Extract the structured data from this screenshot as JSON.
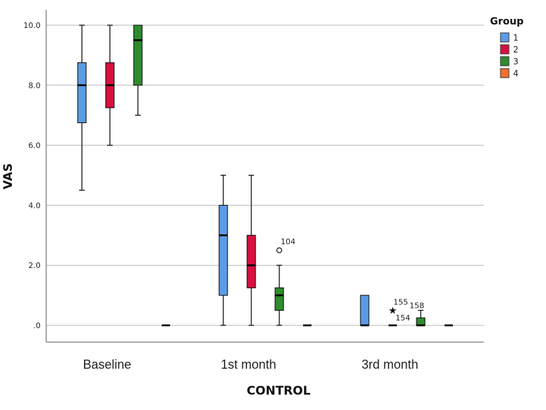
{
  "chart_data": {
    "type": "boxplot",
    "title": "",
    "xlabel": "CONTROL",
    "ylabel": "VAS",
    "ylim": [
      0,
      10
    ],
    "yticks": [
      ".0",
      "2.0",
      "4.0",
      "6.0",
      "8.0",
      "10.0"
    ],
    "ytick_values": [
      0,
      2,
      4,
      6,
      8,
      10
    ],
    "grid": true,
    "legend": {
      "title": "Group",
      "position": "right"
    },
    "categories": [
      "Baseline",
      "1st month",
      "3rd month"
    ],
    "series": [
      {
        "name": "1",
        "color": "#5b9ce6",
        "boxes": [
          {
            "min": 4.5,
            "q1": 6.75,
            "median": 8.0,
            "q3": 8.75,
            "max": 10.0
          },
          {
            "min": 0.0,
            "q1": 1.0,
            "median": 3.0,
            "q3": 4.0,
            "max": 5.0
          },
          {
            "min": 0.0,
            "q1": 0.0,
            "median": 0.0,
            "q3": 1.0,
            "max": 1.0
          }
        ]
      },
      {
        "name": "2",
        "color": "#d8103f",
        "boxes": [
          {
            "min": 6.0,
            "q1": 7.25,
            "median": 8.0,
            "q3": 8.75,
            "max": 10.0
          },
          {
            "min": 0.0,
            "q1": 1.25,
            "median": 2.0,
            "q3": 3.0,
            "max": 5.0
          },
          {
            "min": 0.0,
            "q1": 0.0,
            "median": 0.0,
            "q3": 0.0,
            "max": 0.0
          }
        ]
      },
      {
        "name": "3",
        "color": "#2e8b2e",
        "boxes": [
          {
            "min": 7.0,
            "q1": 8.0,
            "median": 9.5,
            "q3": 10.0,
            "max": 10.0
          },
          {
            "min": 0.0,
            "q1": 0.5,
            "median": 1.0,
            "q3": 1.25,
            "max": 2.0
          },
          {
            "min": 0.0,
            "q1": 0.0,
            "median": 0.0,
            "q3": 0.25,
            "max": 0.5
          }
        ]
      },
      {
        "name": "4",
        "color": "#f07030",
        "boxes": [
          {
            "min": 0.0,
            "q1": 0.0,
            "median": 0.0,
            "q3": 0.0,
            "max": 0.0
          },
          {
            "min": 0.0,
            "q1": 0.0,
            "median": 0.0,
            "q3": 0.0,
            "max": 0.0
          },
          {
            "min": 0.0,
            "q1": 0.0,
            "median": 0.0,
            "q3": 0.0,
            "max": 0.0
          }
        ]
      }
    ],
    "outliers": [
      {
        "series": "3",
        "category": "1st month",
        "value": 2.5,
        "marker": "circle",
        "label": "104"
      },
      {
        "series": "2",
        "category": "3rd month",
        "value": 0.5,
        "marker": "star",
        "label": "155"
      },
      {
        "series": "2",
        "category": "3rd month",
        "value": 0.0,
        "marker": "none",
        "label": "154"
      },
      {
        "series": "3",
        "category": "3rd month",
        "value": 0.5,
        "marker": "none",
        "label": "158"
      }
    ]
  }
}
